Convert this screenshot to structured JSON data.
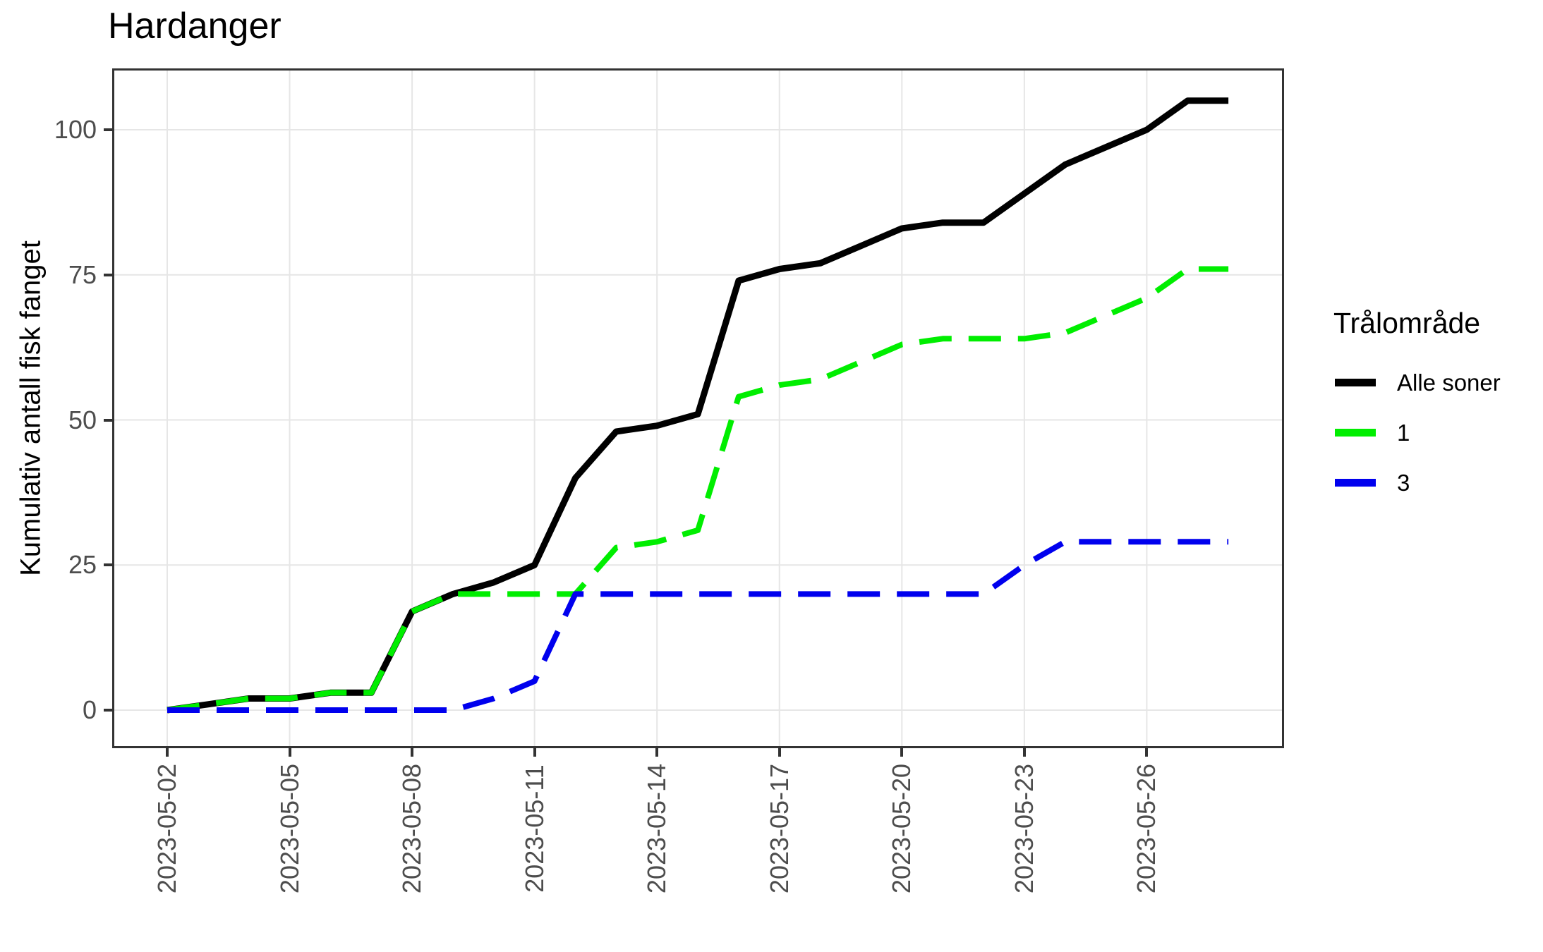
{
  "chart_data": {
    "type": "line",
    "title": "Hardanger",
    "ylabel": "Kumulativ antall fisk fanget",
    "xlabel": "",
    "x": [
      "2023-05-02",
      "2023-05-03",
      "2023-05-04",
      "2023-05-05",
      "2023-05-06",
      "2023-05-07",
      "2023-05-08",
      "2023-05-09",
      "2023-05-10",
      "2023-05-11",
      "2023-05-12",
      "2023-05-13",
      "2023-05-14",
      "2023-05-15",
      "2023-05-16",
      "2023-05-17",
      "2023-05-18",
      "2023-05-19",
      "2023-05-20",
      "2023-05-21",
      "2023-05-22",
      "2023-05-23",
      "2023-05-24",
      "2023-05-25",
      "2023-05-26",
      "2023-05-27",
      "2023-05-28"
    ],
    "series": [
      {
        "name": "Alle soner",
        "color": "#000000",
        "dash": "solid",
        "values": [
          0,
          1,
          2,
          2,
          3,
          3,
          17,
          20,
          22,
          25,
          40,
          48,
          49,
          51,
          74,
          76,
          77,
          80,
          83,
          84,
          84,
          89,
          94,
          97,
          100,
          105,
          105
        ]
      },
      {
        "name": "1",
        "color": "#00EE00",
        "dash": "longdash",
        "values": [
          0,
          1,
          2,
          2,
          3,
          3,
          17,
          20,
          20,
          20,
          20,
          28,
          29,
          31,
          54,
          56,
          57,
          60,
          63,
          64,
          64,
          64,
          65,
          68,
          71,
          76,
          76
        ]
      },
      {
        "name": "3",
        "color": "#0000EE",
        "dash": "longdash",
        "values": [
          0,
          0,
          0,
          0,
          0,
          0,
          0,
          0,
          2,
          5,
          20,
          20,
          20,
          20,
          20,
          20,
          20,
          20,
          20,
          20,
          20,
          25,
          29,
          29,
          29,
          29,
          29
        ]
      }
    ],
    "x_ticks": [
      "2023-05-02",
      "2023-05-05",
      "2023-05-08",
      "2023-05-11",
      "2023-05-14",
      "2023-05-17",
      "2023-05-20",
      "2023-05-23",
      "2023-05-26"
    ],
    "y_ticks": [
      0,
      25,
      50,
      75,
      100
    ],
    "ylim": [
      0,
      105
    ],
    "grid": "major-only",
    "legend": {
      "title": "Trålområde",
      "position": "right"
    },
    "colors": {
      "grid": "#E6E6E6",
      "panel_border": "#333333",
      "tick_label": "#4D4D4D",
      "axis_tick": "#333333",
      "background": "#FFFFFF"
    }
  }
}
